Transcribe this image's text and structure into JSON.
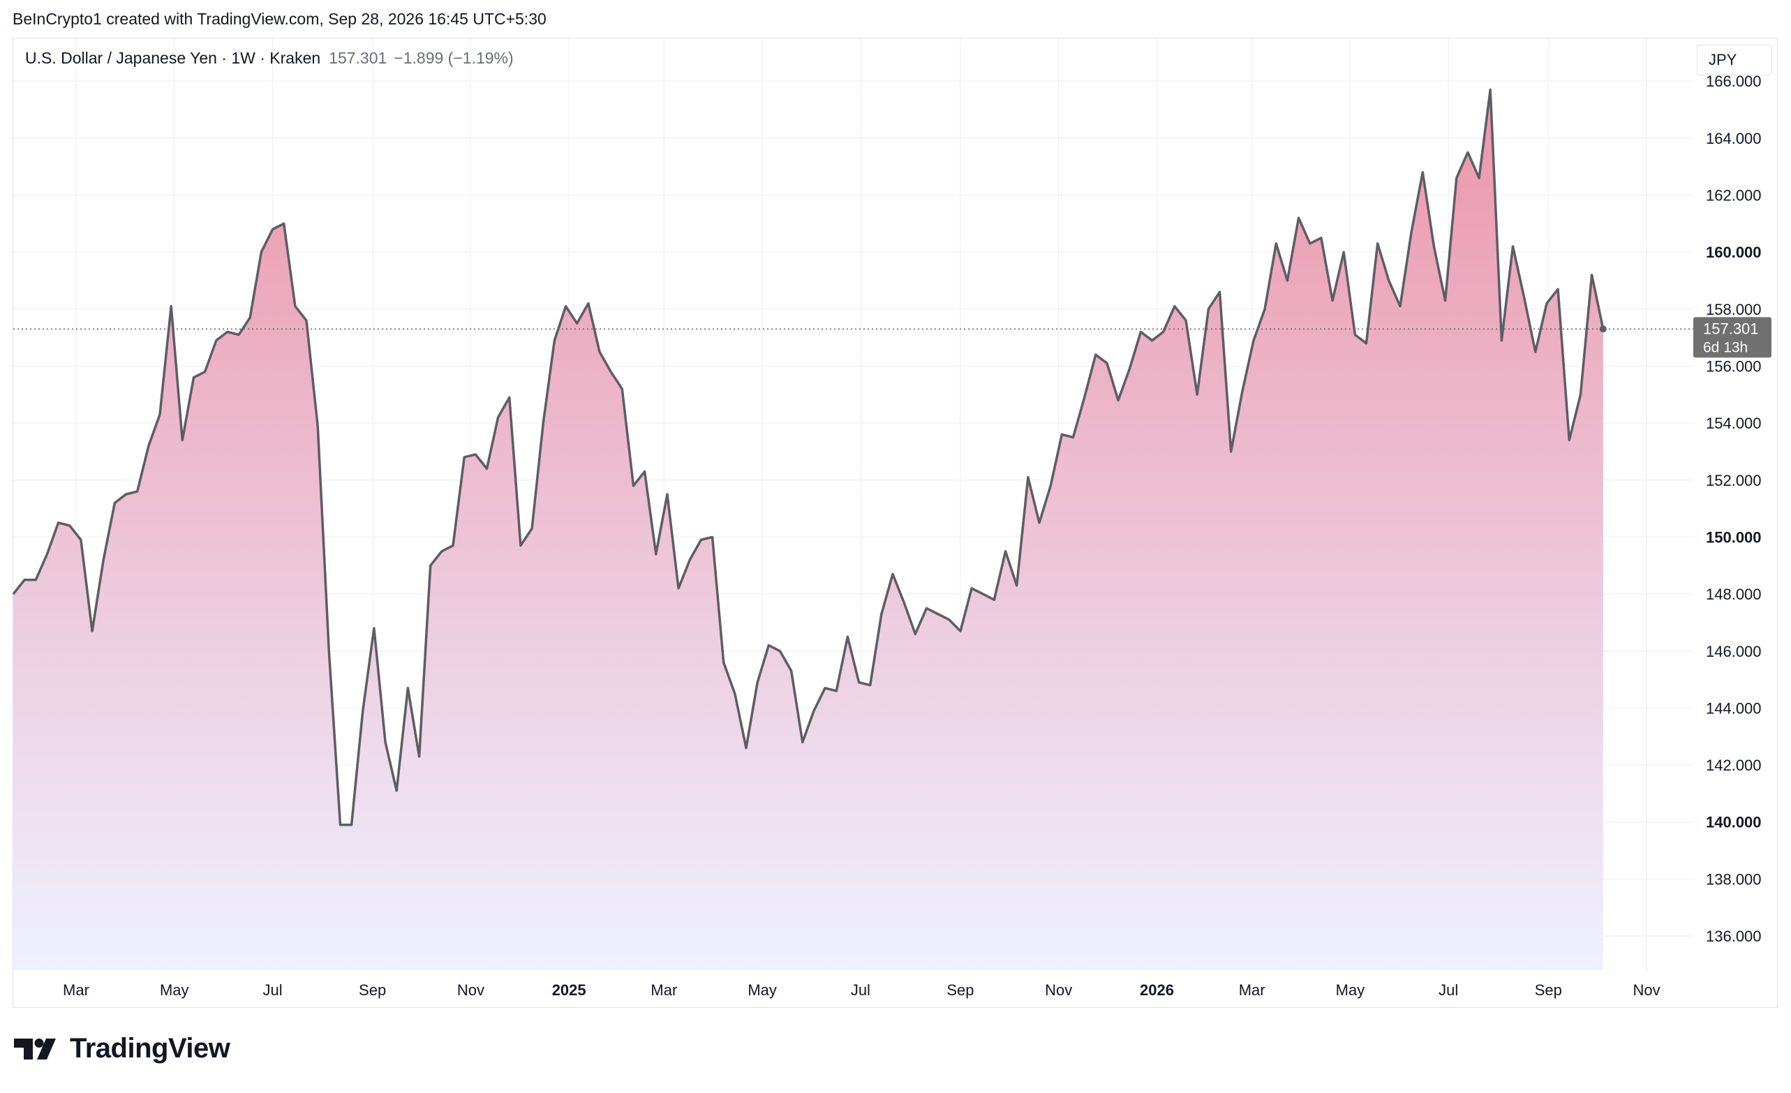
{
  "header": {
    "attribution": "BeInCrypto1 created with TradingView.com, Sep 28, 2026 16:45 UTC+5:30"
  },
  "legend": {
    "symbol": "U.S. Dollar / Japanese Yen · 1W · Kraken",
    "last": "157.301",
    "change": "−1.899 (−1.19%)"
  },
  "currency_button": {
    "label": "JPY"
  },
  "price_badge": {
    "price": "157.301",
    "countdown": "6d 13h"
  },
  "footer": {
    "brand": "TradingView"
  },
  "colors": {
    "line": "#5d5d63",
    "fill_top": "#ec95ab",
    "fill_bottom": "#eef1ff",
    "grid": "#f0f3fa",
    "badge": "#707070"
  },
  "chart_data": {
    "type": "area",
    "series": [
      {
        "values": [
          148.0,
          148.5,
          148.5,
          149.4,
          150.5,
          150.4,
          149.9,
          146.7,
          149.2,
          151.2,
          151.5,
          151.6,
          153.2,
          154.3,
          158.1,
          153.4,
          155.6,
          155.8,
          156.9,
          157.2,
          157.1,
          157.7,
          160.0,
          160.8,
          161.0,
          158.1,
          157.6,
          153.9,
          146.0,
          139.9,
          139.9,
          143.9,
          146.8,
          142.8,
          141.1,
          144.7,
          142.3,
          149.0,
          149.5,
          149.7,
          152.8,
          152.9,
          152.4,
          154.2,
          154.9,
          149.7,
          150.3,
          154.0,
          156.9,
          158.1,
          157.5,
          158.2,
          156.5,
          155.8,
          155.2,
          151.8,
          152.3,
          149.4,
          151.5,
          148.2,
          149.2,
          149.9,
          150.0,
          145.6,
          144.5,
          142.6,
          144.9,
          146.2,
          146.0,
          145.3,
          142.8,
          143.9,
          144.7,
          144.6,
          146.5,
          144.9,
          144.8,
          147.3,
          148.7,
          147.7,
          146.6,
          147.5,
          147.3,
          147.1,
          146.7,
          148.2,
          148.0,
          147.8,
          149.5,
          148.3,
          152.1,
          150.5,
          151.8,
          153.6,
          153.5,
          154.9,
          156.4,
          156.1,
          154.8,
          155.9,
          157.2,
          156.9,
          157.2,
          158.1,
          157.6,
          155.0,
          158.0,
          158.6,
          153.0,
          155.1,
          156.9,
          158.0,
          160.3,
          159.0,
          161.2,
          160.3,
          160.5,
          158.3,
          160.0,
          157.1,
          156.8,
          160.3,
          159.0,
          158.1,
          160.7,
          162.8,
          160.2,
          158.3,
          162.6,
          163.5,
          162.6,
          165.7,
          156.9,
          160.2,
          158.4,
          156.5,
          158.2,
          158.7,
          153.4,
          155.0,
          159.2,
          157.3
        ]
      }
    ],
    "x_axis": {
      "range": [
        "2024-01-22",
        "2026-11-30"
      ],
      "ticks": [
        {
          "label": "Mar",
          "date": "2024-03-01",
          "bold": false
        },
        {
          "label": "May",
          "date": "2024-05-01",
          "bold": false
        },
        {
          "label": "Jul",
          "date": "2024-07-01",
          "bold": false
        },
        {
          "label": "Sep",
          "date": "2024-09-01",
          "bold": false
        },
        {
          "label": "Nov",
          "date": "2024-11-01",
          "bold": false
        },
        {
          "label": "2025",
          "date": "2025-01-01",
          "bold": true
        },
        {
          "label": "Mar",
          "date": "2025-03-01",
          "bold": false
        },
        {
          "label": "May",
          "date": "2025-05-01",
          "bold": false
        },
        {
          "label": "Jul",
          "date": "2025-07-01",
          "bold": false
        },
        {
          "label": "Sep",
          "date": "2025-09-01",
          "bold": false
        },
        {
          "label": "Nov",
          "date": "2025-11-01",
          "bold": false
        },
        {
          "label": "2026",
          "date": "2026-01-01",
          "bold": true
        },
        {
          "label": "Mar",
          "date": "2026-03-01",
          "bold": false
        },
        {
          "label": "May",
          "date": "2026-05-01",
          "bold": false
        },
        {
          "label": "Jul",
          "date": "2026-07-01",
          "bold": false
        },
        {
          "label": "Sep",
          "date": "2026-09-01",
          "bold": false
        },
        {
          "label": "Nov",
          "date": "2026-11-01",
          "bold": false
        }
      ]
    },
    "y_axis": {
      "range": [
        134.8,
        167.5
      ],
      "ticks": [
        {
          "value": 136,
          "label": "136.000",
          "bold": false
        },
        {
          "value": 138,
          "label": "138.000",
          "bold": false
        },
        {
          "value": 140,
          "label": "140.000",
          "bold": true
        },
        {
          "value": 142,
          "label": "142.000",
          "bold": false
        },
        {
          "value": 144,
          "label": "144.000",
          "bold": false
        },
        {
          "value": 146,
          "label": "146.000",
          "bold": false
        },
        {
          "value": 148,
          "label": "148.000",
          "bold": false
        },
        {
          "value": 150,
          "label": "150.000",
          "bold": true
        },
        {
          "value": 152,
          "label": "152.000",
          "bold": false
        },
        {
          "value": 154,
          "label": "154.000",
          "bold": false
        },
        {
          "value": 156,
          "label": "156.000",
          "bold": false
        },
        {
          "value": 158,
          "label": "158.000",
          "bold": false
        },
        {
          "value": 160,
          "label": "160.000",
          "bold": true
        },
        {
          "value": 162,
          "label": "162.000",
          "bold": false
        },
        {
          "value": 164,
          "label": "164.000",
          "bold": false
        },
        {
          "value": 166,
          "label": "166.000",
          "bold": false
        }
      ]
    },
    "last_price": 157.301,
    "grid": true
  }
}
